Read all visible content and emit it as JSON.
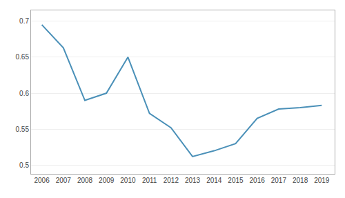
{
  "chart_data": {
    "type": "line",
    "x": [
      2006,
      2007,
      2008,
      2009,
      2010,
      2011,
      2012,
      2013,
      2014,
      2015,
      2016,
      2017,
      2018,
      2019
    ],
    "values": [
      0.695,
      0.663,
      0.59,
      0.6,
      0.65,
      0.572,
      0.552,
      0.512,
      0.52,
      0.53,
      0.565,
      0.578,
      0.58,
      0.583
    ],
    "color": "#4a90b8",
    "xlim": [
      2005.5,
      2019.6
    ],
    "xticks": [
      2006,
      2007,
      2008,
      2009,
      2010,
      2011,
      2012,
      2013,
      2014,
      2015,
      2016,
      2017,
      2018,
      2019
    ],
    "ylim": [
      0.488,
      0.715
    ],
    "yticks": [
      0.5,
      0.55,
      0.6,
      0.65,
      0.7
    ],
    "grid": "y"
  }
}
